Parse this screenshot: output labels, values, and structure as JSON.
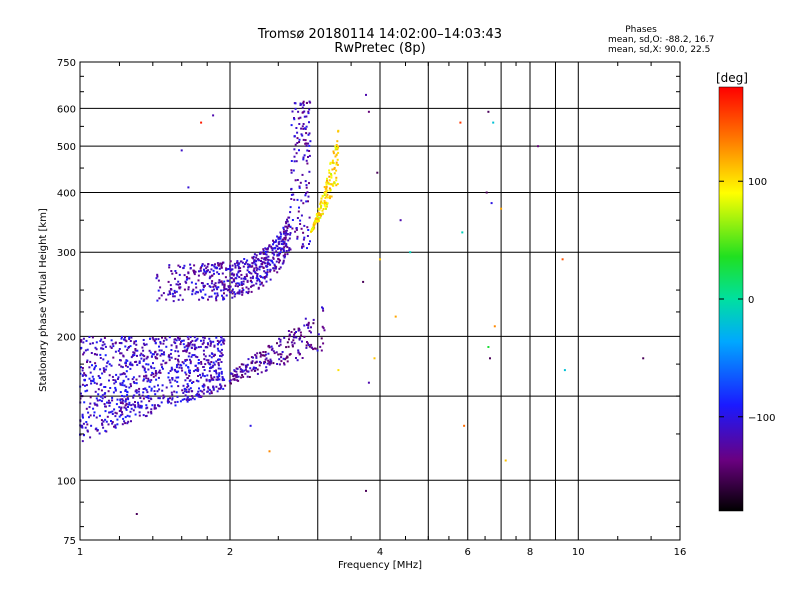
{
  "chart_data": {
    "type": "scatter",
    "title": "Tromsø 20180114 14:02:00–14:03:43",
    "subtitle": "RwPretec (8p)",
    "xlabel": "Frequency [MHz]",
    "ylabel": "Stationary phase Virtual Height [km]",
    "x_scale": "log",
    "y_scale": "log",
    "xlim": [
      1,
      16
    ],
    "ylim": [
      75,
      750
    ],
    "x_ticks": [
      1,
      2,
      4,
      6,
      8,
      10,
      16
    ],
    "x_tick_labels": [
      "1",
      "2",
      "4",
      "6",
      "8",
      "10",
      "16"
    ],
    "x_minor_ticks": [
      3,
      5,
      7,
      9
    ],
    "y_ticks": [
      75,
      100,
      200,
      300,
      400,
      500,
      600,
      750
    ],
    "y_tick_labels": [
      "75",
      "100",
      "200",
      "300",
      "400",
      "500",
      "600",
      "750"
    ],
    "y_grid_extra": [
      150
    ],
    "grid": true,
    "stats": {
      "heading": "Phases",
      "line_o": "mean, sd,O: -88.2, 16.7",
      "line_x": "mean, sd,X:  90.0, 22.5"
    },
    "colorbar": {
      "label": "[deg]",
      "range": [
        -180,
        180
      ],
      "ticks": [
        100,
        0,
        -100
      ],
      "tick_labels": [
        "100",
        "0",
        "−100"
      ]
    },
    "clusters": [
      {
        "name": "",
        "phase": -110,
        "f_range": [
          1.0,
          1.95
        ],
        "h_range": [
          120,
          200
        ],
        "n": 900,
        "shape": "blob"
      },
      {
        "name": "",
        "phase": -115,
        "f_range": [
          1.4,
          2.9
        ],
        "h_range": [
          260,
          640
        ],
        "n": 700,
        "shape": "F-trace"
      },
      {
        "name": "",
        "phase": 100,
        "f_range": [
          2.9,
          3.3
        ],
        "h_range": [
          330,
          520
        ],
        "n": 160,
        "shape": "F-rise"
      },
      {
        "name": "",
        "phase": -125,
        "f_range": [
          1.95,
          3.1
        ],
        "h_range": [
          150,
          225
        ],
        "n": 220,
        "shape": "band"
      }
    ],
    "isolated_points": [
      [
        1.6,
        490,
        -110
      ],
      [
        1.65,
        410,
        -105
      ],
      [
        1.75,
        560,
        170
      ],
      [
        1.85,
        580,
        -120
      ],
      [
        3.75,
        640,
        -120
      ],
      [
        3.8,
        590,
        -140
      ],
      [
        3.95,
        440,
        -150
      ],
      [
        4.4,
        350,
        -120
      ],
      [
        4.6,
        300,
        -10
      ],
      [
        4.0,
        290,
        110
      ],
      [
        4.3,
        220,
        120
      ],
      [
        3.9,
        180,
        110
      ],
      [
        3.8,
        160,
        -120
      ],
      [
        3.7,
        260,
        -150
      ],
      [
        5.8,
        560,
        160
      ],
      [
        5.85,
        330,
        -10
      ],
      [
        6.6,
        590,
        -150
      ],
      [
        6.75,
        560,
        -20
      ],
      [
        6.55,
        400,
        -150
      ],
      [
        6.7,
        380,
        -100
      ],
      [
        6.6,
        190,
        30
      ],
      [
        6.8,
        210,
        130
      ],
      [
        6.65,
        180,
        -150
      ],
      [
        7.0,
        370,
        120
      ],
      [
        7.15,
        110,
        110
      ],
      [
        8.3,
        500,
        -140
      ],
      [
        9.3,
        290,
        150
      ],
      [
        9.4,
        170,
        -20
      ],
      [
        13.5,
        180,
        -150
      ],
      [
        3.3,
        170,
        100
      ],
      [
        1.3,
        85,
        -150
      ],
      [
        2.2,
        130,
        -100
      ],
      [
        2.4,
        115,
        130
      ],
      [
        5.9,
        130,
        140
      ],
      [
        3.75,
        95,
        -150
      ],
      [
        1.7,
        270,
        -130
      ]
    ]
  }
}
